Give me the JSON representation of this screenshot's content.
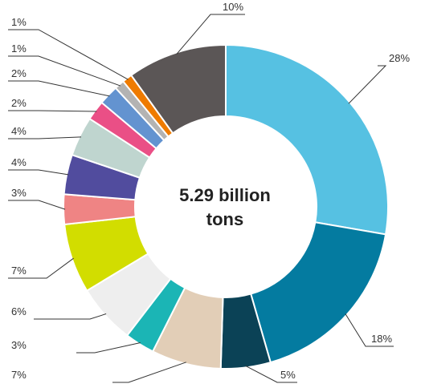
{
  "chart_data": {
    "type": "pie",
    "center_label_lines": [
      "5.29 billion",
      "tons"
    ],
    "slices": [
      {
        "value": 28,
        "label": "28%",
        "color": "#56c1e2"
      },
      {
        "value": 18,
        "label": "18%",
        "color": "#047ba0"
      },
      {
        "value": 5,
        "label": "5%",
        "color": "#0b4256"
      },
      {
        "value": 7,
        "label": "7%",
        "color": "#e2ceb7"
      },
      {
        "value": 3,
        "label": "3%",
        "color": "#1bb5b5"
      },
      {
        "value": 6,
        "label": "6%",
        "color": "#eeeeee"
      },
      {
        "value": 7,
        "label": "7%",
        "color": "#d2dd00"
      },
      {
        "value": 3,
        "label": "3%",
        "color": "#ef8484"
      },
      {
        "value": 4,
        "label": "4%",
        "color": "#514c9e"
      },
      {
        "value": 4,
        "label": "4%",
        "color": "#bfd5cf"
      },
      {
        "value": 2,
        "label": "2%",
        "color": "#ea4f86"
      },
      {
        "value": 2,
        "label": "2%",
        "color": "#6393d0"
      },
      {
        "value": 1,
        "label": "1%",
        "color": "#b3b3b3"
      },
      {
        "value": 1,
        "label": "1%",
        "color": "#ef7b00"
      },
      {
        "value": 10,
        "label": "10%",
        "color": "#5b5656"
      }
    ],
    "legend": "none",
    "grid": false
  }
}
